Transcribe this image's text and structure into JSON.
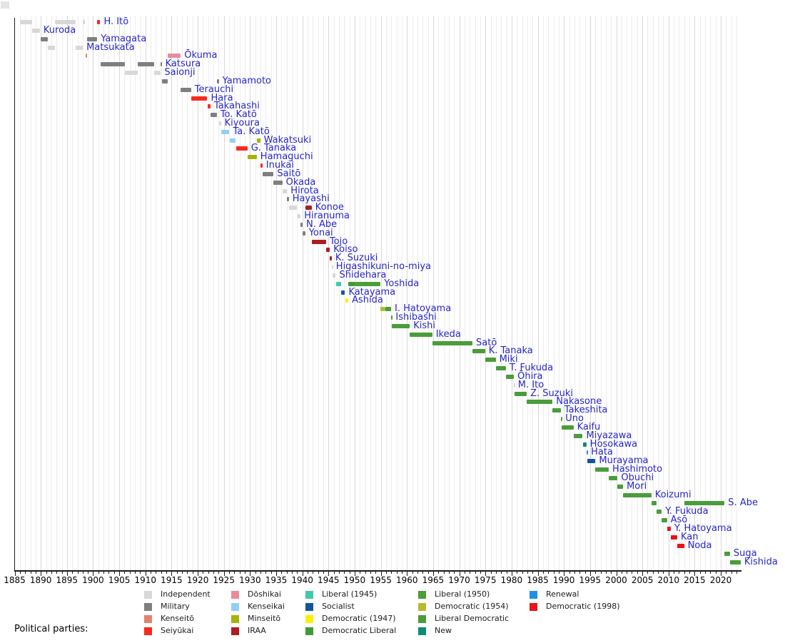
{
  "legend_title": "Political parties:",
  "chart_data": {
    "type": "timeline",
    "title": "",
    "xlabel": "",
    "axis": {
      "start": 1885,
      "end": 2023.9,
      "tick_step": 1,
      "label_step": 5,
      "year_labels": [
        1885,
        1890,
        1895,
        1900,
        1905,
        1910,
        1915,
        1920,
        1925,
        1930,
        1935,
        1940,
        1945,
        1950,
        1955,
        1960,
        1965,
        1970,
        1975,
        1980,
        1985,
        1990,
        1995,
        2000,
        2005,
        2010,
        2015,
        2020
      ]
    },
    "label_color": "#2626cb",
    "parties": {
      "independent": {
        "label": "Independent",
        "color": "#d8d8d8"
      },
      "military": {
        "label": "Military",
        "color": "#7f7f7f"
      },
      "kenseito": {
        "label": "Kenseitō",
        "color": "#e2836e"
      },
      "seiyukai": {
        "label": "Seiyūkai",
        "color": "#f8291d"
      },
      "doshikai": {
        "label": "Dōshikai",
        "color": "#e88b9e"
      },
      "kenseikai": {
        "label": "Kenseikai",
        "color": "#8ed1f4"
      },
      "minseito": {
        "label": "Minseitō",
        "color": "#a3b403"
      },
      "iraa": {
        "label": "IRAA",
        "color": "#ae1d20"
      },
      "lib1945": {
        "label": "Liberal (1945)",
        "color": "#3fc9b0"
      },
      "socialist": {
        "label": "Socialist",
        "color": "#11569d"
      },
      "dem1947": {
        "label": "Democratic (1947)",
        "color": "#fdf000"
      },
      "demlib": {
        "label": "Democratic Liberal",
        "color": "#3f9b36"
      },
      "lib1950": {
        "label": "Liberal (1950)",
        "color": "#4d9d39"
      },
      "dem1954": {
        "label": "Democratic (1954)",
        "color": "#b5bd2c"
      },
      "libdem": {
        "label": "Liberal Democratic",
        "color": "#4a9c3c"
      },
      "new": {
        "label": "New",
        "color": "#0f8a78"
      },
      "renewal": {
        "label": "Renewal",
        "color": "#1f8fe7"
      },
      "dem1998": {
        "label": "Democratic (1998)",
        "color": "#ea131a"
      }
    },
    "legend_columns": [
      [
        "independent",
        "military",
        "kenseito",
        "seiyukai"
      ],
      [
        "doshikai",
        "kenseikai",
        "minseito",
        "iraa"
      ],
      [
        "lib1945",
        "socialist",
        "dem1947",
        "demlib"
      ],
      [
        "lib1950",
        "dem1954",
        "libdem",
        "new"
      ],
      [
        "renewal",
        "dem1998"
      ]
    ],
    "prime_ministers": [
      {
        "name": "H. Itō",
        "segments": [
          {
            "party": "independent",
            "start": 1885.96,
            "end": 1888.33
          },
          {
            "party": "independent",
            "start": 1892.65,
            "end": 1896.71
          },
          {
            "party": "independent",
            "start": 1898.04,
            "end": 1898.5
          },
          {
            "party": "seiyukai",
            "start": 1900.79,
            "end": 1901.37
          }
        ]
      },
      {
        "name": "Kuroda",
        "segments": [
          {
            "party": "independent",
            "start": 1888.33,
            "end": 1889.83
          }
        ]
      },
      {
        "name": "Yamagata",
        "segments": [
          {
            "party": "military",
            "start": 1889.92,
            "end": 1891.35
          },
          {
            "party": "military",
            "start": 1898.87,
            "end": 1900.79
          }
        ]
      },
      {
        "name": "Matsukata",
        "segments": [
          {
            "party": "independent",
            "start": 1891.35,
            "end": 1892.65
          },
          {
            "party": "independent",
            "start": 1896.71,
            "end": 1898.04
          }
        ]
      },
      {
        "name": "Ōkuma",
        "segments": [
          {
            "party": "kenseito",
            "start": 1898.5,
            "end": 1898.87
          },
          {
            "party": "doshikai",
            "start": 1914.29,
            "end": 1916.76
          }
        ]
      },
      {
        "name": "Katsura",
        "segments": [
          {
            "party": "military",
            "start": 1901.42,
            "end": 1906.04
          },
          {
            "party": "military",
            "start": 1908.54,
            "end": 1911.66
          },
          {
            "party": "military",
            "start": 1912.96,
            "end": 1913.12
          }
        ]
      },
      {
        "name": "Saionji",
        "segments": [
          {
            "party": "independent",
            "start": 1906.04,
            "end": 1908.54
          },
          {
            "party": "independent",
            "start": 1911.66,
            "end": 1912.96
          }
        ]
      },
      {
        "name": "Yamamoto",
        "segments": [
          {
            "party": "military",
            "start": 1913.12,
            "end": 1914.29
          },
          {
            "party": "military",
            "start": 1923.67,
            "end": 1924.03
          }
        ]
      },
      {
        "name": "Terauchi",
        "segments": [
          {
            "party": "military",
            "start": 1916.76,
            "end": 1918.74
          }
        ]
      },
      {
        "name": "Hara",
        "segments": [
          {
            "party": "seiyukai",
            "start": 1918.74,
            "end": 1921.84
          }
        ]
      },
      {
        "name": "Takahashi",
        "segments": [
          {
            "party": "seiyukai",
            "start": 1921.84,
            "end": 1922.45
          }
        ]
      },
      {
        "name": "To. Katō",
        "segments": [
          {
            "party": "military",
            "start": 1922.45,
            "end": 1923.65
          }
        ]
      },
      {
        "name": "Kiyoura",
        "segments": [
          {
            "party": "independent",
            "start": 1924.03,
            "end": 1924.44
          }
        ]
      },
      {
        "name": "Ta. Katō",
        "segments": [
          {
            "party": "kenseikai",
            "start": 1924.44,
            "end": 1926.07
          }
        ]
      },
      {
        "name": "Wakatsuki",
        "segments": [
          {
            "party": "kenseikai",
            "start": 1926.07,
            "end": 1927.29
          },
          {
            "party": "minseito",
            "start": 1931.29,
            "end": 1931.95
          }
        ]
      },
      {
        "name": "G. Tanaka",
        "segments": [
          {
            "party": "seiyukai",
            "start": 1927.29,
            "end": 1929.5
          }
        ]
      },
      {
        "name": "Hamaguchi",
        "segments": [
          {
            "party": "minseito",
            "start": 1929.5,
            "end": 1931.29
          }
        ]
      },
      {
        "name": "Inukai",
        "segments": [
          {
            "party": "seiyukai",
            "start": 1931.95,
            "end": 1932.38
          }
        ]
      },
      {
        "name": "Saitō",
        "segments": [
          {
            "party": "military",
            "start": 1932.38,
            "end": 1934.51
          }
        ]
      },
      {
        "name": "Okada",
        "segments": [
          {
            "party": "military",
            "start": 1934.51,
            "end": 1936.17
          }
        ]
      },
      {
        "name": "Hirota",
        "segments": [
          {
            "party": "independent",
            "start": 1936.17,
            "end": 1937.09
          }
        ]
      },
      {
        "name": "Hayashi",
        "segments": [
          {
            "party": "military",
            "start": 1937.09,
            "end": 1937.42
          }
        ]
      },
      {
        "name": "Konoe",
        "segments": [
          {
            "party": "independent",
            "start": 1937.42,
            "end": 1939.02
          },
          {
            "party": "iraa",
            "start": 1940.55,
            "end": 1941.79
          }
        ]
      },
      {
        "name": "Hiranuma",
        "segments": [
          {
            "party": "independent",
            "start": 1939.02,
            "end": 1939.66
          }
        ]
      },
      {
        "name": "N. Abe",
        "segments": [
          {
            "party": "military",
            "start": 1939.66,
            "end": 1940.05
          }
        ]
      },
      {
        "name": "Yonai",
        "segments": [
          {
            "party": "military",
            "start": 1940.05,
            "end": 1940.55
          }
        ]
      },
      {
        "name": "Tojo",
        "segments": [
          {
            "party": "iraa",
            "start": 1941.79,
            "end": 1944.55
          }
        ]
      },
      {
        "name": "Koiso",
        "segments": [
          {
            "party": "iraa",
            "start": 1944.55,
            "end": 1945.27
          }
        ]
      },
      {
        "name": "K. Suzuki",
        "segments": [
          {
            "party": "iraa",
            "start": 1945.27,
            "end": 1945.63
          }
        ]
      },
      {
        "name": "Higashikuni-no-miya",
        "segments": [
          {
            "party": "independent",
            "start": 1945.63,
            "end": 1945.75
          }
        ]
      },
      {
        "name": "Shidehara",
        "segments": [
          {
            "party": "independent",
            "start": 1945.75,
            "end": 1946.39
          }
        ]
      },
      {
        "name": "Yoshida",
        "segments": [
          {
            "party": "lib1945",
            "start": 1946.39,
            "end": 1947.4
          },
          {
            "party": "demlib",
            "start": 1948.79,
            "end": 1950.17
          },
          {
            "party": "lib1950",
            "start": 1950.17,
            "end": 1954.94
          }
        ]
      },
      {
        "name": "Katayama",
        "segments": [
          {
            "party": "socialist",
            "start": 1947.4,
            "end": 1948.17
          }
        ]
      },
      {
        "name": "Ashida",
        "segments": [
          {
            "party": "dem1947",
            "start": 1948.17,
            "end": 1948.79
          }
        ]
      },
      {
        "name": "I. Hatoyama",
        "segments": [
          {
            "party": "dem1954",
            "start": 1954.94,
            "end": 1955.87
          },
          {
            "party": "libdem",
            "start": 1955.87,
            "end": 1956.96
          }
        ]
      },
      {
        "name": "Ishibashi",
        "segments": [
          {
            "party": "libdem",
            "start": 1956.96,
            "end": 1957.15
          }
        ]
      },
      {
        "name": "Kishi",
        "segments": [
          {
            "party": "libdem",
            "start": 1957.15,
            "end": 1960.54
          }
        ]
      },
      {
        "name": "Ikeda",
        "segments": [
          {
            "party": "libdem",
            "start": 1960.54,
            "end": 1964.84
          }
        ]
      },
      {
        "name": "Satō",
        "segments": [
          {
            "party": "libdem",
            "start": 1964.84,
            "end": 1972.52
          }
        ]
      },
      {
        "name": "K. Tanaka",
        "segments": [
          {
            "party": "libdem",
            "start": 1972.52,
            "end": 1974.93
          }
        ]
      },
      {
        "name": "Miki",
        "segments": [
          {
            "party": "libdem",
            "start": 1974.93,
            "end": 1976.96
          }
        ]
      },
      {
        "name": "T. Fukuda",
        "segments": [
          {
            "party": "libdem",
            "start": 1976.96,
            "end": 1978.92
          }
        ]
      },
      {
        "name": "Ōhira",
        "segments": [
          {
            "party": "libdem",
            "start": 1978.92,
            "end": 1980.44
          }
        ]
      },
      {
        "name": "M. Ito",
        "segments": [
          {
            "party": "independent",
            "start": 1980.44,
            "end": 1980.54
          }
        ]
      },
      {
        "name": "Z. Suzuki",
        "segments": [
          {
            "party": "libdem",
            "start": 1980.54,
            "end": 1982.9
          }
        ]
      },
      {
        "name": "Nakasone",
        "segments": [
          {
            "party": "libdem",
            "start": 1982.9,
            "end": 1987.84
          }
        ]
      },
      {
        "name": "Takeshita",
        "segments": [
          {
            "party": "libdem",
            "start": 1987.84,
            "end": 1989.42
          }
        ]
      },
      {
        "name": "Uno",
        "segments": [
          {
            "party": "libdem",
            "start": 1989.42,
            "end": 1989.6
          }
        ]
      },
      {
        "name": "Kaifu",
        "segments": [
          {
            "party": "libdem",
            "start": 1989.6,
            "end": 1991.84
          }
        ]
      },
      {
        "name": "Miyazawa",
        "segments": [
          {
            "party": "libdem",
            "start": 1991.84,
            "end": 1993.6
          }
        ]
      },
      {
        "name": "Hosokawa",
        "segments": [
          {
            "party": "new",
            "start": 1993.6,
            "end": 1994.32
          }
        ]
      },
      {
        "name": "Hata",
        "segments": [
          {
            "party": "renewal",
            "start": 1994.32,
            "end": 1994.49
          }
        ]
      },
      {
        "name": "Murayama",
        "segments": [
          {
            "party": "socialist",
            "start": 1994.49,
            "end": 1996.04
          }
        ]
      },
      {
        "name": "Hashimoto",
        "segments": [
          {
            "party": "libdem",
            "start": 1996.04,
            "end": 1998.58
          }
        ]
      },
      {
        "name": "Obuchi",
        "segments": [
          {
            "party": "libdem",
            "start": 1998.58,
            "end": 2000.26
          }
        ]
      },
      {
        "name": "Mori",
        "segments": [
          {
            "party": "libdem",
            "start": 2000.26,
            "end": 2001.32
          }
        ]
      },
      {
        "name": "Koizumi",
        "segments": [
          {
            "party": "libdem",
            "start": 2001.32,
            "end": 2006.73
          }
        ]
      },
      {
        "name": "S. Abe",
        "segments": [
          {
            "party": "libdem",
            "start": 2006.73,
            "end": 2007.73
          },
          {
            "party": "libdem",
            "start": 2012.98,
            "end": 2020.71
          }
        ]
      },
      {
        "name": "Y. Fukuda",
        "segments": [
          {
            "party": "libdem",
            "start": 2007.73,
            "end": 2008.73
          }
        ]
      },
      {
        "name": "Asō",
        "segments": [
          {
            "party": "libdem",
            "start": 2008.73,
            "end": 2009.71
          }
        ]
      },
      {
        "name": "Y. Hatoyama",
        "segments": [
          {
            "party": "dem1998",
            "start": 2009.71,
            "end": 2010.43
          }
        ]
      },
      {
        "name": "Kan",
        "segments": [
          {
            "party": "dem1998",
            "start": 2010.43,
            "end": 2011.67
          }
        ]
      },
      {
        "name": "Noda",
        "segments": [
          {
            "party": "dem1998",
            "start": 2011.67,
            "end": 2012.98
          }
        ]
      },
      {
        "name": "Suga",
        "segments": [
          {
            "party": "libdem",
            "start": 2020.71,
            "end": 2021.75
          }
        ]
      },
      {
        "name": "Kishida",
        "segments": [
          {
            "party": "libdem",
            "start": 2021.75,
            "end": 2023.8
          }
        ]
      }
    ]
  }
}
